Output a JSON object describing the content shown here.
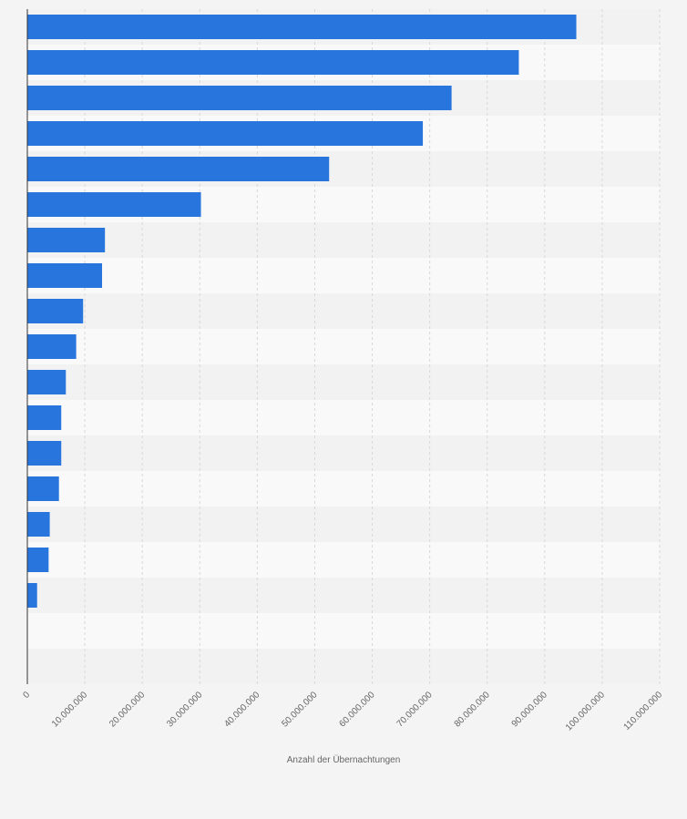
{
  "chart_data": {
    "type": "bar",
    "orientation": "horizontal",
    "title": "",
    "xlabel": "Anzahl der Übernachtungen",
    "ylabel": "",
    "xlim": [
      0,
      110000000
    ],
    "xticks": [
      0,
      10000000,
      20000000,
      30000000,
      40000000,
      50000000,
      60000000,
      70000000,
      80000000,
      90000000,
      100000000,
      110000000
    ],
    "xtick_labels": [
      "0",
      "10.000.000",
      "20.000.000",
      "30.000.000",
      "40.000.000",
      "50.000.000",
      "60.000.000",
      "70.000.000",
      "80.000.000",
      "90.000.000",
      "100.000.000",
      "110.000.000"
    ],
    "categories": [
      "",
      "",
      "",
      "",
      "",
      "",
      "",
      "",
      "",
      "",
      "",
      "",
      "",
      "",
      "",
      "",
      "",
      "",
      ""
    ],
    "values": [
      95500000,
      85500000,
      73800000,
      68800000,
      52500000,
      30200000,
      13500000,
      13000000,
      9700000,
      8500000,
      6700000,
      5900000,
      5900000,
      5500000,
      3900000,
      3700000,
      1700000,
      null,
      null
    ],
    "grid": true,
    "legend": "none",
    "colors": {
      "bar": "#2876dd",
      "background": "#f4f4f4",
      "band_light": "#f9f9f9",
      "band_dark": "#f2f2f2",
      "grid": "#d8d8d8",
      "axis": "#333333"
    }
  }
}
